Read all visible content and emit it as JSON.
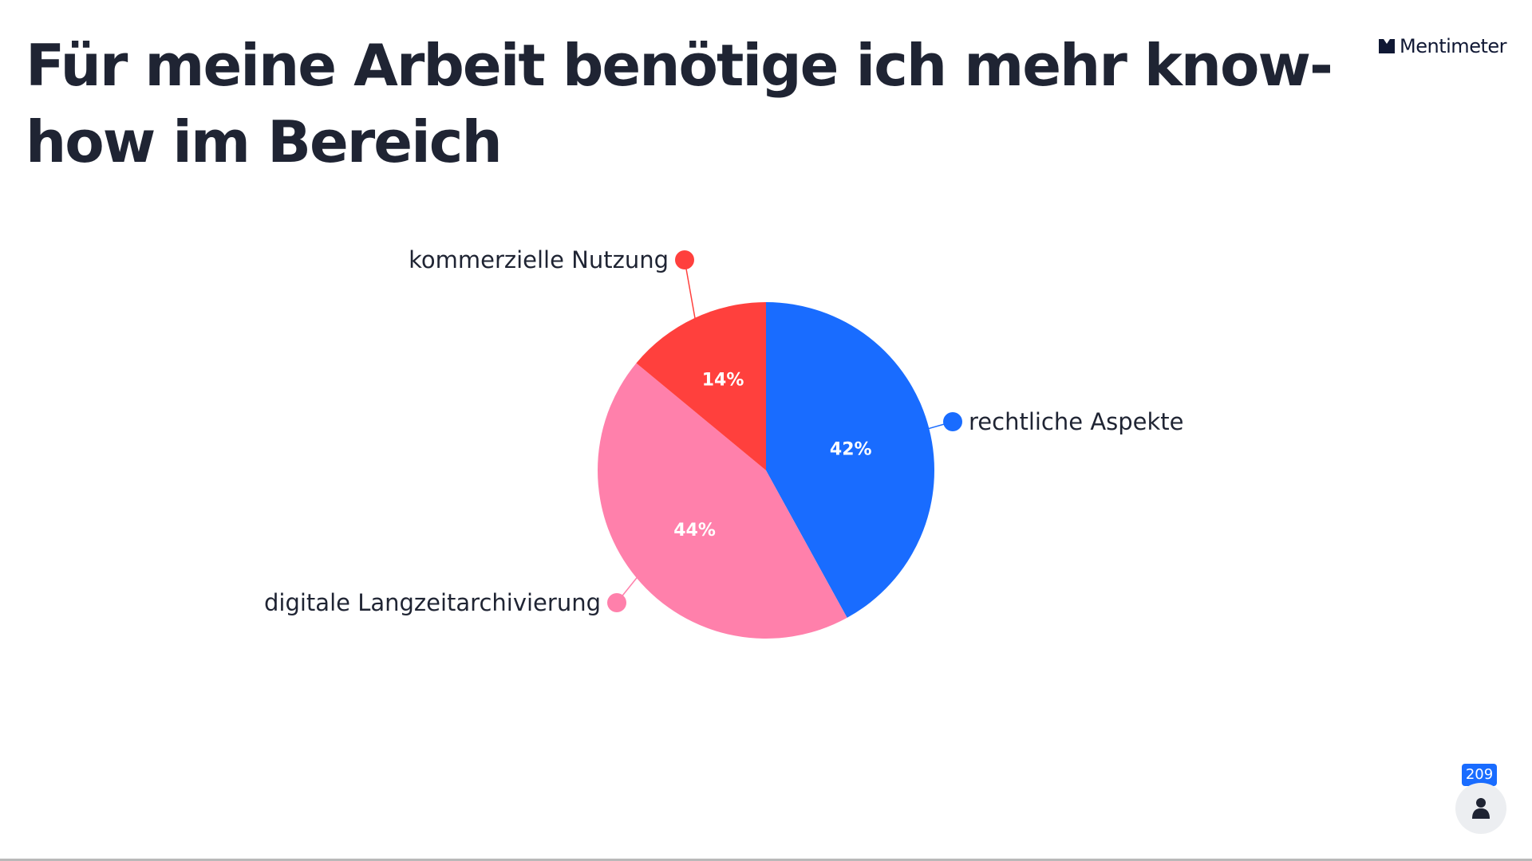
{
  "slide": {
    "title": "Für meine Arbeit benötige ich mehr know-how im Bereich",
    "brand": "Mentimeter"
  },
  "participants": {
    "count": "209",
    "icon": "person-icon"
  },
  "colors": {
    "text": "#1f2433",
    "blue": "#196cff",
    "pink": "#ff80ab",
    "red": "#ff403d"
  },
  "chart_data": {
    "type": "pie",
    "title": "Für meine Arbeit benötige ich mehr know-how im Bereich",
    "slices": [
      {
        "label": "rechtliche Aspekte",
        "value": 42,
        "display": "42%",
        "color": "#196cff"
      },
      {
        "label": "digitale Langzeitarchivierung",
        "value": 44,
        "display": "44%",
        "color": "#ff80ab"
      },
      {
        "label": "kommerzielle Nutzung",
        "value": 14,
        "display": "14%",
        "color": "#ff403d"
      }
    ],
    "start_angle": "12 o'clock",
    "direction": "clockwise",
    "legend": "callout labels beside slices"
  }
}
